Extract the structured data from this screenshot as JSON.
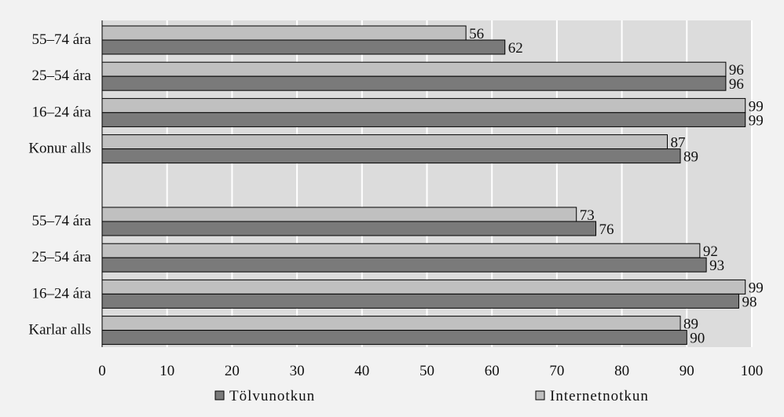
{
  "chart_data": {
    "type": "bar",
    "orientation": "horizontal",
    "categories": [
      "55–74 ára",
      "25–54 ára",
      "16–24 ára",
      "Konur alls",
      "",
      "55–74 ára",
      "25–54 ára",
      "16–24 ára",
      "Karlar alls"
    ],
    "series": [
      {
        "name": "Internetnotkun",
        "color": "#c0c0c0",
        "values": [
          56,
          96,
          99,
          87,
          null,
          73,
          92,
          99,
          89
        ]
      },
      {
        "name": "Tölvunotkun",
        "color": "#7a7a7a",
        "values": [
          62,
          96,
          99,
          89,
          null,
          76,
          93,
          98,
          90
        ]
      }
    ],
    "xlim": [
      0,
      100
    ],
    "xticks": [
      "0",
      "10",
      "20",
      "30",
      "40",
      "50",
      "60",
      "70",
      "80",
      "90",
      "100"
    ],
    "grid": true,
    "legend_position": "bottom",
    "legend_order": [
      "Tölvunotkun",
      "Internetnotkun"
    ],
    "plot_background": "#dcdcdc",
    "page_background": "#f2f2f2",
    "grid_color": "#ffffff"
  }
}
